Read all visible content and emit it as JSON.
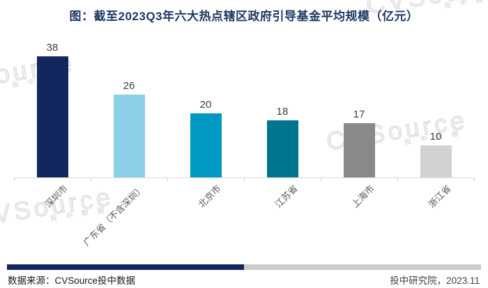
{
  "title": "图：截至2023Q3年六大热点辖区政府引导基金平均规模（亿元）",
  "chart_data": {
    "type": "bar",
    "title": "图：截至2023Q3年六大热点辖区政府引导基金平均规模（亿元）",
    "categories": [
      "深圳市",
      "广东省（不含深圳）",
      "北京市",
      "江苏省",
      "上海市",
      "浙江省"
    ],
    "values": [
      38,
      26,
      20,
      18,
      17,
      10
    ],
    "bar_colors": [
      "#12275E",
      "#8CCFE8",
      "#0099C4",
      "#00758F",
      "#898989",
      "#D2D2D2"
    ],
    "ylim": [
      0,
      40
    ],
    "xlabel": "",
    "ylabel": "",
    "grid": false,
    "legend": "none",
    "value_labels_shown": true
  },
  "footer": {
    "source_label": "数据来源：CVSource投中数据",
    "org_date_label": "投中研究院，2023.11"
  },
  "watermark": {
    "brand": "CVSource",
    "sub": "投 中 数 据"
  },
  "colors": {
    "title": "#1F3864",
    "axis": "#D9D9D9",
    "value_label": "#404040",
    "category_label": "#595959",
    "divider_left": "#12275E",
    "divider_right": "#CCCCCC"
  }
}
